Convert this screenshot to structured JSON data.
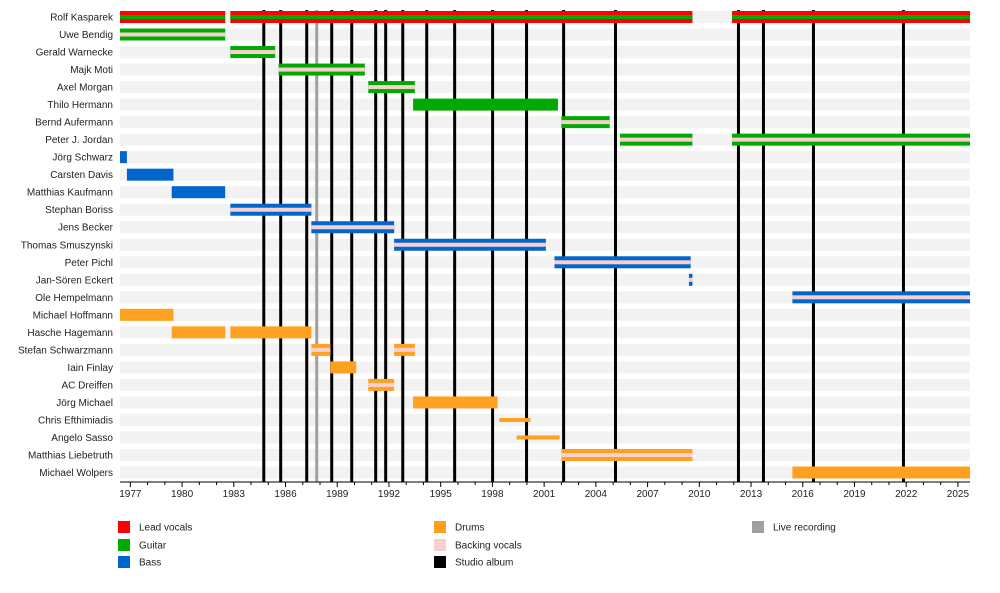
{
  "chart_data": {
    "type": "timeline",
    "xlim": [
      1976.4,
      2025.7
    ],
    "x_ticks": [
      1977,
      1980,
      1983,
      1986,
      1989,
      1992,
      1995,
      1998,
      2001,
      2004,
      2007,
      2010,
      2013,
      2016,
      2019,
      2022,
      2025
    ],
    "grid": false,
    "legend_placement": "bottom",
    "colors": {
      "lead_vocals": "#ff0000",
      "guitar": "#00aa00",
      "bass": "#0066cc",
      "drums": "#ffa020",
      "backing_vocals": "#f8d0d0",
      "studio_album": "#000000",
      "live_recording": "#a0a0a0"
    },
    "legend": [
      {
        "key": "lead_vocals",
        "label": "Lead vocals"
      },
      {
        "key": "guitar",
        "label": "Guitar"
      },
      {
        "key": "bass",
        "label": "Bass"
      },
      {
        "key": "drums",
        "label": "Drums"
      },
      {
        "key": "backing_vocals",
        "label": "Backing vocals"
      },
      {
        "key": "studio_album",
        "label": "Studio album"
      },
      {
        "key": "live_recording",
        "label": "Live recording"
      }
    ],
    "members": [
      {
        "name": "Rolf Kasparek",
        "periods": [
          {
            "from": 1976.4,
            "to": 1982.5,
            "role": "lead_vocals",
            "also": "guitar"
          },
          {
            "from": 1982.8,
            "to": 2009.6,
            "role": "lead_vocals",
            "also": "guitar"
          },
          {
            "from": 2011.9,
            "to": 2025.7,
            "role": "lead_vocals",
            "also": "guitar"
          }
        ]
      },
      {
        "name": "Uwe Bendig",
        "periods": [
          {
            "from": 1976.4,
            "to": 1982.5,
            "role": "guitar",
            "also": "backing_vocals"
          }
        ]
      },
      {
        "name": "Gerald Warnecke",
        "periods": [
          {
            "from": 1982.8,
            "to": 1985.4,
            "role": "guitar",
            "also": "backing_vocals"
          }
        ]
      },
      {
        "name": "Majk Moti",
        "periods": [
          {
            "from": 1985.6,
            "to": 1990.6,
            "role": "guitar",
            "also": "backing_vocals"
          }
        ]
      },
      {
        "name": "Axel Morgan",
        "periods": [
          {
            "from": 1990.8,
            "to": 1993.5,
            "role": "guitar",
            "also": "backing_vocals"
          }
        ]
      },
      {
        "name": "Thilo Hermann",
        "periods": [
          {
            "from": 1993.4,
            "to": 2001.8,
            "role": "guitar"
          }
        ]
      },
      {
        "name": "Bernd Aufermann",
        "periods": [
          {
            "from": 2002.0,
            "to": 2004.8,
            "role": "guitar",
            "also": "backing_vocals"
          }
        ]
      },
      {
        "name": "Peter J. Jordan",
        "periods": [
          {
            "from": 2005.4,
            "to": 2009.6,
            "role": "guitar",
            "also": "backing_vocals"
          },
          {
            "from": 2011.9,
            "to": 2025.7,
            "role": "guitar",
            "also": "backing_vocals"
          }
        ]
      },
      {
        "name": "Jörg Schwarz",
        "periods": [
          {
            "from": 1976.4,
            "to": 1976.8,
            "role": "bass"
          }
        ]
      },
      {
        "name": "Carsten Davis",
        "periods": [
          {
            "from": 1976.8,
            "to": 1979.5,
            "role": "bass"
          }
        ]
      },
      {
        "name": "Matthias Kaufmann",
        "periods": [
          {
            "from": 1979.4,
            "to": 1982.5,
            "role": "bass"
          }
        ]
      },
      {
        "name": "Stephan Boriss",
        "periods": [
          {
            "from": 1982.8,
            "to": 1987.5,
            "role": "bass",
            "also": "backing_vocals"
          }
        ]
      },
      {
        "name": "Jens Becker",
        "periods": [
          {
            "from": 1987.5,
            "to": 1992.3,
            "role": "bass",
            "also": "backing_vocals"
          }
        ]
      },
      {
        "name": "Thomas Smuszynski",
        "periods": [
          {
            "from": 1992.3,
            "to": 2001.1,
            "role": "bass",
            "also": "backing_vocals"
          }
        ]
      },
      {
        "name": "Peter Pichl",
        "periods": [
          {
            "from": 2001.6,
            "to": 2009.5,
            "role": "bass",
            "also": "backing_vocals"
          }
        ]
      },
      {
        "name": "Jan-Sören Eckert",
        "periods": [
          {
            "from": 2009.4,
            "to": 2009.6,
            "role": "bass",
            "also": "backing_vocals"
          }
        ]
      },
      {
        "name": "Ole Hempelmann",
        "periods": [
          {
            "from": 2015.4,
            "to": 2025.7,
            "role": "bass",
            "also": "backing_vocals"
          }
        ]
      },
      {
        "name": "Michael Hoffmann",
        "periods": [
          {
            "from": 1976.4,
            "to": 1979.5,
            "role": "drums"
          }
        ]
      },
      {
        "name": "Hasche Hagemann",
        "periods": [
          {
            "from": 1979.4,
            "to": 1982.5,
            "role": "drums"
          },
          {
            "from": 1982.8,
            "to": 1987.5,
            "role": "drums"
          }
        ]
      },
      {
        "name": "Stefan Schwarzmann",
        "periods": [
          {
            "from": 1987.5,
            "to": 1988.6,
            "role": "drums",
            "also": "backing_vocals"
          },
          {
            "from": 1992.3,
            "to": 1993.5,
            "role": "drums",
            "also": "backing_vocals"
          }
        ]
      },
      {
        "name": "Iain Finlay",
        "periods": [
          {
            "from": 1988.6,
            "to": 1990.1,
            "role": "drums"
          }
        ]
      },
      {
        "name": "AC Dreiffen",
        "periods": [
          {
            "from": 1990.8,
            "to": 1992.3,
            "role": "drums",
            "also": "backing_vocals"
          }
        ]
      },
      {
        "name": "Jörg Michael",
        "periods": [
          {
            "from": 1993.4,
            "to": 1998.3,
            "role": "drums"
          }
        ]
      },
      {
        "name": "Chris Efthimiadis",
        "periods": [
          {
            "from": 1998.4,
            "to": 2000.2,
            "role": "drums",
            "thin": true
          }
        ]
      },
      {
        "name": "Angelo Sasso",
        "periods": [
          {
            "from": 1999.4,
            "to": 2001.9,
            "role": "drums",
            "thin": true
          }
        ]
      },
      {
        "name": "Matthias Liebetruth",
        "periods": [
          {
            "from": 2002.0,
            "to": 2009.6,
            "role": "drums",
            "also": "backing_vocals"
          }
        ]
      },
      {
        "name": "Michael Wolpers",
        "periods": [
          {
            "from": 2015.4,
            "to": 2025.7,
            "role": "drums"
          }
        ]
      }
    ],
    "studio_albums": [
      1984.74,
      1985.72,
      1987.23,
      1988.68,
      1989.84,
      1991.23,
      1991.81,
      1992.8,
      1994.19,
      1995.81,
      1998.01,
      1999.98,
      2002.13,
      2005.14,
      2012.27,
      2013.72,
      2016.62,
      2021.84
    ],
    "live_recordings": [
      1987.81
    ]
  }
}
